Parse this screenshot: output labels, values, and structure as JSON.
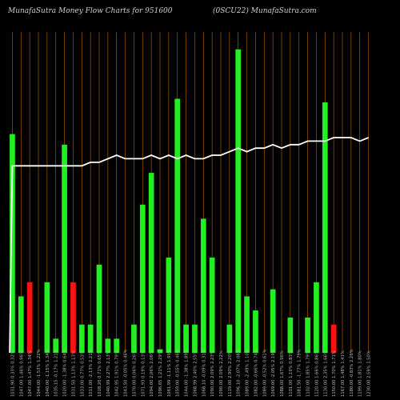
{
  "header": {
    "left_title": "MunafaSutra  Money Flow  Charts for 951600",
    "right_title": "(0SCU22) MunafaSutra.com"
  },
  "chart_data": {
    "type": "bar",
    "title": "MunafaSutra  Money Flow  Charts for 951600",
    "subtitle": "(0SCU22) MunafaSutra.com",
    "colors": {
      "up": "#22ee22",
      "down": "#ff1111",
      "line": "#ffffff",
      "grid": "#b86a00",
      "background": "#000000"
    },
    "grid": true,
    "ylim": [
      0,
      100
    ],
    "categories": [
      "1031.90 0.33% 0.32%",
      "1047.00 1.46% 0.96%",
      "1047.00 1.47% 1.34%",
      "1044.00 -1.53% 1.22%",
      "1040.00 -1.15% 1.34%",
      "1035.15 -0.17% 1.21%",
      "1020.00 -1.38% 0.64%",
      "1031.50 1.13% 1.13%",
      "1033.00 0.77% 0.53%",
      "1011.00 -2.13% 2.21%",
      "1018.20 0.71% 0.65%",
      "1040.99 2.27% 2.13%",
      "1042.95 1.91% 0.79%",
      "1043.50 -0.05% 0.46%",
      "1070.00 0.06% 0.26%",
      "1071.93 0.19% 0.13%",
      "1094.00 2.06% 2.06%",
      "1096.65 1.21% 2.29%",
      "1061.99 -1.11% 1.99%",
      "1059.00 -0.55% 0.46%",
      "1044.00 -1.38% 1.89%",
      "1068.99 2.40% 2.55%",
      "1068.10 -0.09% 0.31%",
      "1090.00 2.09% 2.23%",
      "1090.00 2.09% 2.22%",
      "1119.00 2.90% 2.20%",
      "1096.10 -2.07% 2.08%",
      "1089.00 -2.49% 1.10%",
      "1082.00 -0.66% 0.74%",
      "1089.00 -0.52% 0.61%",
      "1069.00 -2.05% 2.19%",
      "1088.00 1.67% 0.96%",
      "1101.00 1.19% 0.83%",
      "1081.50 -1.77% 1.79%",
      "1102.00 1.85% 1.79%",
      "1120.00 1.66% 0.86%",
      "1130.00 2.35% 1.66%",
      "1150.00 1.70% 1.71%",
      "1167.00 1.48% 1.41%",
      "1180.00 -0.83% 2.26%",
      "1199.00 1.81% 1.80%",
      "1230.00 2.59% 1.50%"
    ],
    "values": [
      62,
      16,
      20,
      0,
      20,
      4,
      59,
      20,
      8,
      8,
      25,
      4,
      4,
      0,
      8,
      42,
      51,
      1,
      27,
      72,
      8,
      8,
      38,
      27,
      0,
      8,
      86,
      16,
      12,
      0,
      18,
      0,
      10,
      0,
      10,
      20,
      71,
      8,
      0,
      0,
      0,
      0
    ],
    "bar_colors": [
      "up",
      "up",
      "down",
      "down",
      "up",
      "up",
      "up",
      "down",
      "up",
      "up",
      "up",
      "up",
      "up",
      "up",
      "up",
      "up",
      "up",
      "up",
      "up",
      "up",
      "up",
      "up",
      "up",
      "up",
      "up",
      "up",
      "up",
      "up",
      "up",
      "up",
      "up",
      "down",
      "up",
      "up",
      "up",
      "up",
      "up",
      "down",
      "up",
      "up",
      "up",
      "up"
    ],
    "line": {
      "name": "",
      "values": [
        53,
        53,
        53,
        53,
        53,
        53,
        53,
        53,
        53,
        54,
        54,
        55,
        56,
        55,
        55,
        55,
        56,
        55,
        56,
        55,
        56,
        55,
        55,
        56,
        56,
        57,
        58,
        57,
        58,
        58,
        59,
        58,
        59,
        59,
        60,
        60,
        60,
        61,
        61,
        61,
        60,
        61
      ]
    }
  }
}
